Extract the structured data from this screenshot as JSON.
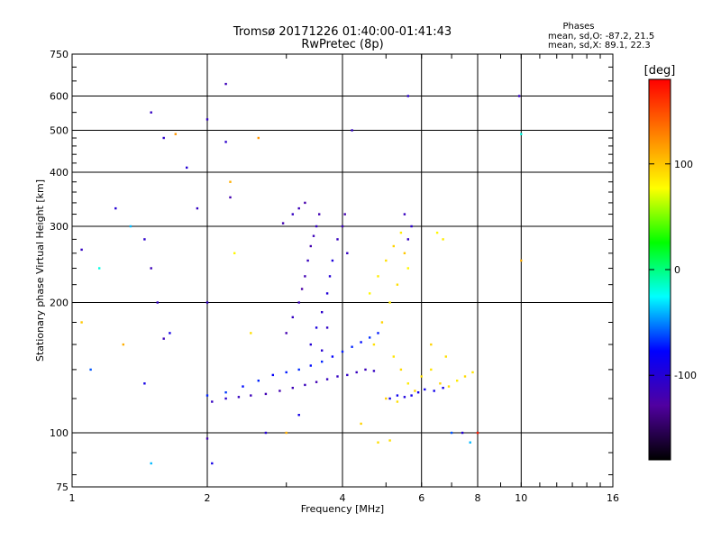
{
  "chart_data": {
    "type": "scatter",
    "title": "Tromsø 20171226 01:40:00-01:41:43",
    "subtitle": "RwPretec (8p)",
    "xlabel": "Frequency [MHz]",
    "ylabel": "Stationary phase Virtual Height [km]",
    "x_scale": "log2",
    "y_scale": "log",
    "xlim": [
      1,
      16
    ],
    "ylim": [
      75,
      750
    ],
    "x_ticks": [
      1,
      2,
      4,
      6,
      8,
      10,
      16
    ],
    "x_tick_labels": [
      "1",
      "2",
      "4",
      "6",
      "8",
      "10",
      "16"
    ],
    "y_ticks": [
      75,
      100,
      200,
      300,
      400,
      500,
      600,
      750
    ],
    "y_tick_labels": [
      "75",
      "100",
      "200",
      "300",
      "400",
      "500",
      "600",
      "750"
    ],
    "grid": true,
    "stats": {
      "heading": "Phases",
      "line_o": "mean, sd,O: -87.2, 21.5",
      "line_x": "mean, sd,X:  89.1, 22.3"
    },
    "colorbar": {
      "unit_label": "[deg]",
      "range": [
        -180,
        180
      ],
      "ticks": [
        100,
        0,
        -100
      ],
      "tick_labels": [
        "100",
        "0",
        "-100"
      ],
      "colors": [
        "#ff0000",
        "#ff8000",
        "#ffff00",
        "#00ff00",
        "#00ffff",
        "#0000ff",
        "#5000a0",
        "#000000"
      ]
    },
    "series": [
      {
        "points": [
          [
            2.05,
            118,
            -110
          ],
          [
            2.2,
            120,
            -105
          ],
          [
            2.35,
            121,
            -112
          ],
          [
            2.5,
            122,
            -115
          ],
          [
            2.7,
            123,
            -118
          ],
          [
            2.9,
            125,
            -120
          ],
          [
            3.1,
            127,
            -116
          ],
          [
            3.3,
            129,
            -114
          ],
          [
            3.5,
            131,
            -118
          ],
          [
            3.7,
            133,
            -112
          ],
          [
            3.9,
            135,
            -110
          ],
          [
            4.1,
            136,
            -108
          ],
          [
            4.3,
            138,
            -112
          ],
          [
            4.5,
            140,
            -115
          ],
          [
            4.7,
            139,
            -110
          ],
          [
            2.0,
            122,
            -70
          ],
          [
            2.2,
            124,
            -65
          ],
          [
            2.4,
            128,
            -75
          ],
          [
            2.6,
            132,
            -70
          ],
          [
            2.8,
            136,
            -80
          ],
          [
            3.0,
            138,
            -72
          ],
          [
            3.2,
            140,
            -68
          ],
          [
            3.4,
            143,
            -75
          ],
          [
            3.6,
            146,
            -70
          ],
          [
            3.8,
            150,
            -78
          ],
          [
            4.0,
            154,
            -72
          ],
          [
            4.2,
            158,
            -70
          ],
          [
            4.4,
            162,
            -75
          ],
          [
            4.6,
            166,
            -68
          ],
          [
            4.8,
            170,
            -72
          ],
          [
            3.0,
            170,
            -120
          ],
          [
            3.1,
            185,
            -110
          ],
          [
            3.2,
            200,
            -115
          ],
          [
            3.25,
            215,
            -125
          ],
          [
            3.3,
            230,
            -118
          ],
          [
            3.35,
            250,
            -112
          ],
          [
            3.4,
            270,
            -120
          ],
          [
            3.45,
            285,
            -115
          ],
          [
            3.5,
            300,
            -110
          ],
          [
            3.55,
            320,
            -118
          ],
          [
            3.3,
            340,
            -122
          ],
          [
            3.2,
            330,
            -115
          ],
          [
            3.1,
            320,
            -110
          ],
          [
            2.95,
            305,
            -118
          ],
          [
            3.4,
            160,
            -100
          ],
          [
            3.5,
            175,
            -95
          ],
          [
            3.6,
            190,
            -105
          ],
          [
            3.7,
            210,
            -98
          ],
          [
            3.75,
            230,
            -100
          ],
          [
            3.8,
            250,
            -95
          ],
          [
            3.7,
            175,
            -108
          ],
          [
            3.6,
            155,
            -102
          ],
          [
            3.9,
            280,
            -112
          ],
          [
            4.0,
            300,
            -115
          ],
          [
            4.05,
            320,
            -120
          ],
          [
            4.1,
            260,
            -110
          ],
          [
            4.6,
            210,
            80
          ],
          [
            4.8,
            230,
            85
          ],
          [
            5.0,
            250,
            90
          ],
          [
            5.2,
            270,
            95
          ],
          [
            5.4,
            290,
            85
          ],
          [
            5.5,
            260,
            100
          ],
          [
            5.6,
            240,
            80
          ],
          [
            5.3,
            220,
            90
          ],
          [
            5.1,
            200,
            85
          ],
          [
            4.9,
            180,
            95
          ],
          [
            4.7,
            160,
            90
          ],
          [
            5.2,
            150,
            88
          ],
          [
            5.4,
            140,
            92
          ],
          [
            5.6,
            130,
            85
          ],
          [
            5.8,
            125,
            95
          ],
          [
            6.0,
            135,
            90
          ],
          [
            6.3,
            140,
            88
          ],
          [
            6.6,
            130,
            95
          ],
          [
            6.9,
            128,
            90
          ],
          [
            7.2,
            132,
            85
          ],
          [
            7.5,
            135,
            92
          ],
          [
            7.8,
            138,
            88
          ],
          [
            6.5,
            290,
            80
          ],
          [
            6.7,
            280,
            85
          ],
          [
            6.3,
            160,
            95
          ],
          [
            6.8,
            150,
            90
          ],
          [
            5.0,
            120,
            98
          ],
          [
            5.3,
            118,
            90
          ],
          [
            5.1,
            120,
            -90
          ],
          [
            5.3,
            122,
            -85
          ],
          [
            5.5,
            121,
            -95
          ],
          [
            5.7,
            122,
            -88
          ],
          [
            5.9,
            124,
            -92
          ],
          [
            6.1,
            126,
            -85
          ],
          [
            6.4,
            125,
            -88
          ],
          [
            6.7,
            127,
            -90
          ],
          [
            5.6,
            280,
            -110
          ],
          [
            5.7,
            300,
            -105
          ],
          [
            5.5,
            320,
            -112
          ],
          [
            1.05,
            265,
            -110
          ],
          [
            1.15,
            240,
            -20
          ],
          [
            1.25,
            330,
            -100
          ],
          [
            1.35,
            300,
            -40
          ],
          [
            1.45,
            280,
            -105
          ],
          [
            1.5,
            240,
            -115
          ],
          [
            1.55,
            200,
            -110
          ],
          [
            1.6,
            165,
            -115
          ],
          [
            1.45,
            130,
            -90
          ],
          [
            1.5,
            85,
            -40
          ],
          [
            1.5,
            550,
            -110
          ],
          [
            1.6,
            480,
            -105
          ],
          [
            1.7,
            490,
            120
          ],
          [
            1.8,
            410,
            -100
          ],
          [
            2.0,
            530,
            -110
          ],
          [
            2.2,
            640,
            -115
          ],
          [
            2.2,
            470,
            -105
          ],
          [
            2.25,
            380,
            110
          ],
          [
            2.25,
            350,
            -120
          ],
          [
            2.6,
            480,
            120
          ],
          [
            4.2,
            500,
            -110
          ],
          [
            5.6,
            600,
            -105
          ],
          [
            9.9,
            600,
            -110
          ],
          [
            10.0,
            490,
            -20
          ],
          [
            10.0,
            250,
            110
          ],
          [
            1.05,
            180,
            100
          ],
          [
            1.1,
            140,
            -60
          ],
          [
            1.3,
            160,
            110
          ],
          [
            1.65,
            170,
            -90
          ],
          [
            1.9,
            330,
            -110
          ],
          [
            2.0,
            200,
            -110
          ],
          [
            2.0,
            97,
            -120
          ],
          [
            2.05,
            85,
            -90
          ],
          [
            2.3,
            260,
            80
          ],
          [
            2.5,
            170,
            90
          ],
          [
            2.7,
            100,
            -100
          ],
          [
            3.0,
            100,
            110
          ],
          [
            3.2,
            110,
            -90
          ],
          [
            4.4,
            105,
            95
          ],
          [
            4.8,
            95,
            90
          ],
          [
            5.1,
            96,
            90
          ],
          [
            7.0,
            100,
            -60
          ],
          [
            7.7,
            95,
            -40
          ],
          [
            8.0,
            100,
            170
          ],
          [
            7.4,
            100,
            -100
          ]
        ]
      }
    ]
  }
}
